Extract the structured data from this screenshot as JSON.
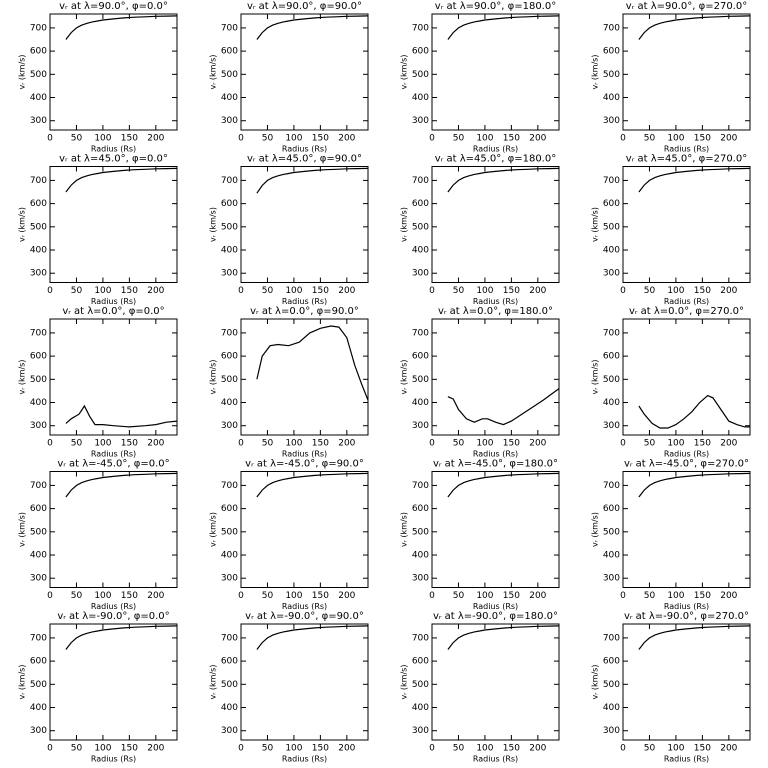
{
  "chart_data": [
    {
      "type": "line",
      "title": "vᵣ at λ=90.0°, φ=0.0°",
      "xlabel": "Radius (Rs)",
      "ylabel": "vᵣ (km/s)",
      "xlim": [
        0,
        240
      ],
      "ylim": [
        260,
        760
      ],
      "xticks": [
        0,
        50,
        100,
        150,
        200
      ],
      "yticks": [
        300,
        400,
        500,
        600,
        700
      ],
      "color": "#000000",
      "x": [
        30,
        40,
        50,
        60,
        70,
        80,
        90,
        100,
        120,
        140,
        160,
        180,
        200,
        220,
        240
      ],
      "values": [
        650,
        680,
        700,
        712,
        720,
        726,
        730,
        734,
        739,
        743,
        746,
        748,
        750,
        751,
        752
      ]
    },
    {
      "type": "line",
      "title": "vᵣ at λ=90.0°, φ=90.0°",
      "xlabel": "Radius (Rs)",
      "ylabel": "vᵣ (km/s)",
      "xlim": [
        0,
        240
      ],
      "ylim": [
        260,
        760
      ],
      "xticks": [
        0,
        50,
        100,
        150,
        200
      ],
      "yticks": [
        300,
        400,
        500,
        600,
        700
      ],
      "color": "#000000",
      "x": [
        30,
        40,
        50,
        60,
        70,
        80,
        90,
        100,
        120,
        140,
        160,
        180,
        200,
        220,
        240
      ],
      "values": [
        650,
        680,
        700,
        712,
        720,
        726,
        730,
        734,
        739,
        743,
        746,
        748,
        750,
        751,
        752
      ]
    },
    {
      "type": "line",
      "title": "vᵣ at λ=90.0°, φ=180.0°",
      "xlabel": "Radius (Rs)",
      "ylabel": "vᵣ (km/s)",
      "xlim": [
        0,
        240
      ],
      "ylim": [
        260,
        760
      ],
      "xticks": [
        0,
        50,
        100,
        150,
        200
      ],
      "yticks": [
        300,
        400,
        500,
        600,
        700
      ],
      "color": "#000000",
      "x": [
        30,
        40,
        50,
        60,
        70,
        80,
        90,
        100,
        120,
        140,
        160,
        180,
        200,
        220,
        240
      ],
      "values": [
        650,
        680,
        700,
        712,
        720,
        726,
        730,
        734,
        739,
        743,
        746,
        748,
        750,
        751,
        752
      ]
    },
    {
      "type": "line",
      "title": "vᵣ at λ=90.0°, φ=270.0°",
      "xlabel": "Radius (Rs)",
      "ylabel": "vᵣ (km/s)",
      "xlim": [
        0,
        240
      ],
      "ylim": [
        260,
        760
      ],
      "xticks": [
        0,
        50,
        100,
        150,
        200
      ],
      "yticks": [
        300,
        400,
        500,
        600,
        700
      ],
      "color": "#000000",
      "x": [
        30,
        40,
        50,
        60,
        70,
        80,
        90,
        100,
        120,
        140,
        160,
        180,
        200,
        220,
        240
      ],
      "values": [
        650,
        680,
        700,
        712,
        720,
        726,
        730,
        734,
        739,
        743,
        746,
        748,
        750,
        751,
        752
      ]
    },
    {
      "type": "line",
      "title": "vᵣ at λ=45.0°, φ=0.0°",
      "xlabel": "Radius (Rs)",
      "ylabel": "vᵣ (km/s)",
      "xlim": [
        0,
        240
      ],
      "ylim": [
        260,
        760
      ],
      "xticks": [
        0,
        50,
        100,
        150,
        200
      ],
      "yticks": [
        300,
        400,
        500,
        600,
        700
      ],
      "color": "#000000",
      "x": [
        30,
        40,
        50,
        60,
        70,
        80,
        90,
        100,
        120,
        140,
        160,
        180,
        200,
        220,
        240
      ],
      "values": [
        650,
        680,
        700,
        712,
        720,
        726,
        730,
        734,
        739,
        743,
        746,
        748,
        750,
        751,
        752
      ]
    },
    {
      "type": "line",
      "title": "vᵣ at λ=45.0°, φ=90.0°",
      "xlabel": "Radius (Rs)",
      "ylabel": "vᵣ (km/s)",
      "xlim": [
        0,
        240
      ],
      "ylim": [
        260,
        760
      ],
      "xticks": [
        0,
        50,
        100,
        150,
        200
      ],
      "yticks": [
        300,
        400,
        500,
        600,
        700
      ],
      "color": "#000000",
      "x": [
        30,
        40,
        50,
        60,
        70,
        80,
        90,
        100,
        120,
        140,
        160,
        180,
        200,
        220,
        240
      ],
      "values": [
        645,
        678,
        700,
        712,
        720,
        726,
        730,
        734,
        739,
        743,
        746,
        748,
        750,
        751,
        752
      ]
    },
    {
      "type": "line",
      "title": "vᵣ at λ=45.0°, φ=180.0°",
      "xlabel": "Radius (Rs)",
      "ylabel": "vᵣ (km/s)",
      "xlim": [
        0,
        240
      ],
      "ylim": [
        260,
        760
      ],
      "xticks": [
        0,
        50,
        100,
        150,
        200
      ],
      "yticks": [
        300,
        400,
        500,
        600,
        700
      ],
      "color": "#000000",
      "x": [
        30,
        40,
        50,
        60,
        70,
        80,
        90,
        100,
        120,
        140,
        160,
        180,
        200,
        220,
        240
      ],
      "values": [
        650,
        680,
        700,
        712,
        720,
        726,
        730,
        734,
        739,
        743,
        746,
        748,
        750,
        751,
        752
      ]
    },
    {
      "type": "line",
      "title": "vᵣ at λ=45.0°, φ=270.0°",
      "xlabel": "Radius (Rs)",
      "ylabel": "vᵣ (km/s)",
      "xlim": [
        0,
        240
      ],
      "ylim": [
        260,
        760
      ],
      "xticks": [
        0,
        50,
        100,
        150,
        200
      ],
      "yticks": [
        300,
        400,
        500,
        600,
        700
      ],
      "color": "#000000",
      "x": [
        30,
        40,
        50,
        60,
        70,
        80,
        90,
        100,
        120,
        140,
        160,
        180,
        200,
        220,
        240
      ],
      "values": [
        650,
        680,
        700,
        712,
        720,
        726,
        730,
        734,
        739,
        743,
        746,
        748,
        750,
        751,
        752
      ]
    },
    {
      "type": "line",
      "title": "vᵣ at λ=0.0°, φ=0.0°",
      "xlabel": "Radius (Rs)",
      "ylabel": "vᵣ (km/s)",
      "xlim": [
        0,
        240
      ],
      "ylim": [
        260,
        760
      ],
      "xticks": [
        0,
        50,
        100,
        150,
        200
      ],
      "yticks": [
        300,
        400,
        500,
        600,
        700
      ],
      "color": "#000000",
      "x": [
        30,
        40,
        55,
        65,
        75,
        85,
        100,
        120,
        150,
        180,
        200,
        220,
        240
      ],
      "values": [
        310,
        330,
        350,
        385,
        340,
        305,
        305,
        300,
        295,
        300,
        305,
        315,
        320
      ]
    },
    {
      "type": "line",
      "title": "vᵣ at λ=0.0°, φ=90.0°",
      "xlabel": "Radius (Rs)",
      "ylabel": "vᵣ (km/s)",
      "xlim": [
        0,
        240
      ],
      "ylim": [
        260,
        760
      ],
      "xticks": [
        0,
        50,
        100,
        150,
        200
      ],
      "yticks": [
        300,
        400,
        500,
        600,
        700
      ],
      "color": "#000000",
      "x": [
        30,
        40,
        55,
        70,
        90,
        110,
        130,
        150,
        170,
        185,
        200,
        215,
        228,
        240
      ],
      "values": [
        500,
        600,
        645,
        650,
        645,
        660,
        700,
        720,
        730,
        725,
        680,
        560,
        480,
        410
      ]
    },
    {
      "type": "line",
      "title": "vᵣ at λ=0.0°, φ=180.0°",
      "xlabel": "Radius (Rs)",
      "ylabel": "vᵣ (km/s)",
      "xlim": [
        0,
        240
      ],
      "ylim": [
        260,
        760
      ],
      "xticks": [
        0,
        50,
        100,
        150,
        200
      ],
      "yticks": [
        300,
        400,
        500,
        600,
        700
      ],
      "color": "#000000",
      "x": [
        30,
        40,
        50,
        65,
        80,
        95,
        105,
        120,
        135,
        150,
        170,
        190,
        210,
        225,
        240
      ],
      "values": [
        425,
        415,
        370,
        330,
        315,
        330,
        330,
        315,
        305,
        320,
        350,
        380,
        410,
        435,
        460
      ]
    },
    {
      "type": "line",
      "title": "vᵣ at λ=0.0°, φ=270.0°",
      "xlabel": "Radius (Rs)",
      "ylabel": "vᵣ (km/s)",
      "xlim": [
        0,
        240
      ],
      "ylim": [
        260,
        760
      ],
      "xticks": [
        0,
        50,
        100,
        150,
        200
      ],
      "yticks": [
        300,
        400,
        500,
        600,
        700
      ],
      "color": "#000000",
      "x": [
        30,
        40,
        55,
        70,
        85,
        100,
        115,
        130,
        145,
        160,
        170,
        185,
        200,
        215,
        230,
        240
      ],
      "values": [
        385,
        350,
        310,
        290,
        290,
        305,
        330,
        360,
        400,
        430,
        420,
        370,
        320,
        305,
        295,
        295
      ]
    },
    {
      "type": "line",
      "title": "vᵣ at λ=-45.0°, φ=0.0°",
      "xlabel": "Radius (Rs)",
      "ylabel": "vᵣ (km/s)",
      "xlim": [
        0,
        240
      ],
      "ylim": [
        260,
        760
      ],
      "xticks": [
        0,
        50,
        100,
        150,
        200
      ],
      "yticks": [
        300,
        400,
        500,
        600,
        700
      ],
      "color": "#000000",
      "x": [
        30,
        40,
        50,
        60,
        70,
        80,
        90,
        100,
        120,
        140,
        160,
        180,
        200,
        220,
        240
      ],
      "values": [
        650,
        680,
        700,
        712,
        720,
        726,
        730,
        734,
        739,
        743,
        746,
        748,
        750,
        751,
        752
      ]
    },
    {
      "type": "line",
      "title": "vᵣ at λ=-45.0°, φ=90.0°",
      "xlabel": "Radius (Rs)",
      "ylabel": "vᵣ (km/s)",
      "xlim": [
        0,
        240
      ],
      "ylim": [
        260,
        760
      ],
      "xticks": [
        0,
        50,
        100,
        150,
        200
      ],
      "yticks": [
        300,
        400,
        500,
        600,
        700
      ],
      "color": "#000000",
      "x": [
        30,
        40,
        50,
        60,
        70,
        80,
        90,
        100,
        120,
        140,
        160,
        180,
        200,
        220,
        240
      ],
      "values": [
        650,
        680,
        700,
        712,
        720,
        726,
        730,
        734,
        739,
        743,
        746,
        748,
        750,
        751,
        752
      ]
    },
    {
      "type": "line",
      "title": "vᵣ at λ=-45.0°, φ=180.0°",
      "xlabel": "Radius (Rs)",
      "ylabel": "vᵣ (km/s)",
      "xlim": [
        0,
        240
      ],
      "ylim": [
        260,
        760
      ],
      "xticks": [
        0,
        50,
        100,
        150,
        200
      ],
      "yticks": [
        300,
        400,
        500,
        600,
        700
      ],
      "color": "#000000",
      "x": [
        30,
        40,
        50,
        60,
        70,
        80,
        90,
        100,
        120,
        140,
        160,
        180,
        200,
        220,
        240
      ],
      "values": [
        650,
        680,
        700,
        712,
        720,
        726,
        730,
        734,
        739,
        743,
        746,
        748,
        750,
        751,
        752
      ]
    },
    {
      "type": "line",
      "title": "vᵣ at λ=-45.0°, φ=270.0°",
      "xlabel": "Radius (Rs)",
      "ylabel": "vᵣ (km/s)",
      "xlim": [
        0,
        240
      ],
      "ylim": [
        260,
        760
      ],
      "xticks": [
        0,
        50,
        100,
        150,
        200
      ],
      "yticks": [
        300,
        400,
        500,
        600,
        700
      ],
      "color": "#000000",
      "x": [
        30,
        40,
        50,
        60,
        70,
        80,
        90,
        100,
        120,
        140,
        160,
        180,
        200,
        220,
        240
      ],
      "values": [
        650,
        680,
        700,
        712,
        720,
        726,
        730,
        734,
        739,
        743,
        746,
        748,
        750,
        751,
        752
      ]
    },
    {
      "type": "line",
      "title": "vᵣ at λ=-90.0°, φ=0.0°",
      "xlabel": "Radius (Rs)",
      "ylabel": "vᵣ (km/s)",
      "xlim": [
        0,
        240
      ],
      "ylim": [
        260,
        760
      ],
      "xticks": [
        0,
        50,
        100,
        150,
        200
      ],
      "yticks": [
        300,
        400,
        500,
        600,
        700
      ],
      "color": "#000000",
      "x": [
        30,
        40,
        50,
        60,
        70,
        80,
        90,
        100,
        120,
        140,
        160,
        180,
        200,
        220,
        240
      ],
      "values": [
        650,
        680,
        700,
        712,
        720,
        726,
        730,
        734,
        739,
        743,
        746,
        748,
        750,
        751,
        752
      ]
    },
    {
      "type": "line",
      "title": "vᵣ at λ=-90.0°, φ=90.0°",
      "xlabel": "Radius (Rs)",
      "ylabel": "vᵣ (km/s)",
      "xlim": [
        0,
        240
      ],
      "ylim": [
        260,
        760
      ],
      "xticks": [
        0,
        50,
        100,
        150,
        200
      ],
      "yticks": [
        300,
        400,
        500,
        600,
        700
      ],
      "color": "#000000",
      "x": [
        30,
        40,
        50,
        60,
        70,
        80,
        90,
        100,
        120,
        140,
        160,
        180,
        200,
        220,
        240
      ],
      "values": [
        650,
        680,
        700,
        712,
        720,
        726,
        730,
        734,
        739,
        743,
        746,
        748,
        750,
        751,
        752
      ]
    },
    {
      "type": "line",
      "title": "vᵣ at λ=-90.0°, φ=180.0°",
      "xlabel": "Radius (Rs)",
      "ylabel": "vᵣ (km/s)",
      "xlim": [
        0,
        240
      ],
      "ylim": [
        260,
        760
      ],
      "xticks": [
        0,
        50,
        100,
        150,
        200
      ],
      "yticks": [
        300,
        400,
        500,
        600,
        700
      ],
      "color": "#000000",
      "x": [
        30,
        40,
        50,
        60,
        70,
        80,
        90,
        100,
        120,
        140,
        160,
        180,
        200,
        220,
        240
      ],
      "values": [
        650,
        680,
        700,
        712,
        720,
        726,
        730,
        734,
        739,
        743,
        746,
        748,
        750,
        751,
        752
      ]
    },
    {
      "type": "line",
      "title": "vᵣ at λ=-90.0°, φ=270.0°",
      "xlabel": "Radius (Rs)",
      "ylabel": "vᵣ (km/s)",
      "xlim": [
        0,
        240
      ],
      "ylim": [
        260,
        760
      ],
      "xticks": [
        0,
        50,
        100,
        150,
        200
      ],
      "yticks": [
        300,
        400,
        500,
        600,
        700
      ],
      "color": "#000000",
      "x": [
        30,
        40,
        50,
        60,
        70,
        80,
        90,
        100,
        120,
        140,
        160,
        180,
        200,
        220,
        240
      ],
      "values": [
        650,
        680,
        700,
        712,
        720,
        726,
        730,
        734,
        739,
        743,
        746,
        748,
        750,
        751,
        752
      ]
    }
  ]
}
